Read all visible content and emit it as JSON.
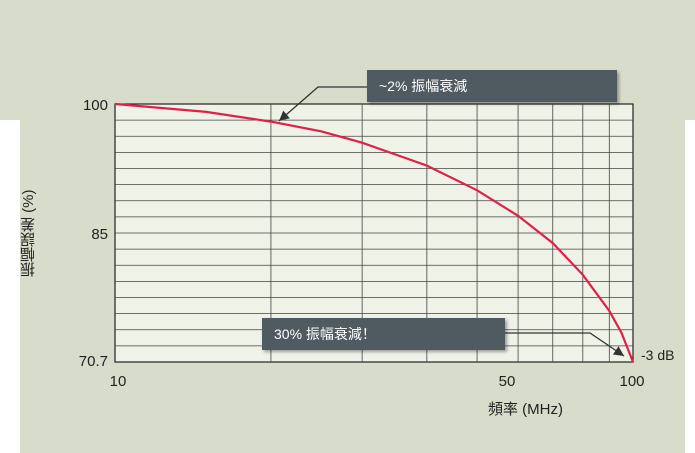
{
  "chart_data": {
    "type": "line",
    "xlabel": "頻率 (MHz)",
    "ylabel": "振幅誤差 (%)",
    "x_scale": "log",
    "xlim": [
      10,
      100
    ],
    "ylim": [
      70.7,
      100
    ],
    "x_ticks": [
      "10",
      "50",
      "100"
    ],
    "y_ticks": [
      "100",
      "85",
      "70.7"
    ],
    "grid": true,
    "series": [
      {
        "color": "#e0204a",
        "x": [
          10,
          15,
          20,
          25,
          30,
          40,
          50,
          60,
          70,
          80,
          90,
          95,
          100
        ],
        "y": [
          100,
          99.1,
          98.0,
          96.9,
          95.6,
          93.0,
          90.2,
          87.3,
          84.2,
          80.6,
          76.5,
          74.0,
          70.7
        ]
      }
    ],
    "annotations": [
      {
        "text": "~2% 振幅衰減"
      },
      {
        "text": "30% 振幅衰減！"
      },
      {
        "text": "-3 dB"
      }
    ]
  }
}
